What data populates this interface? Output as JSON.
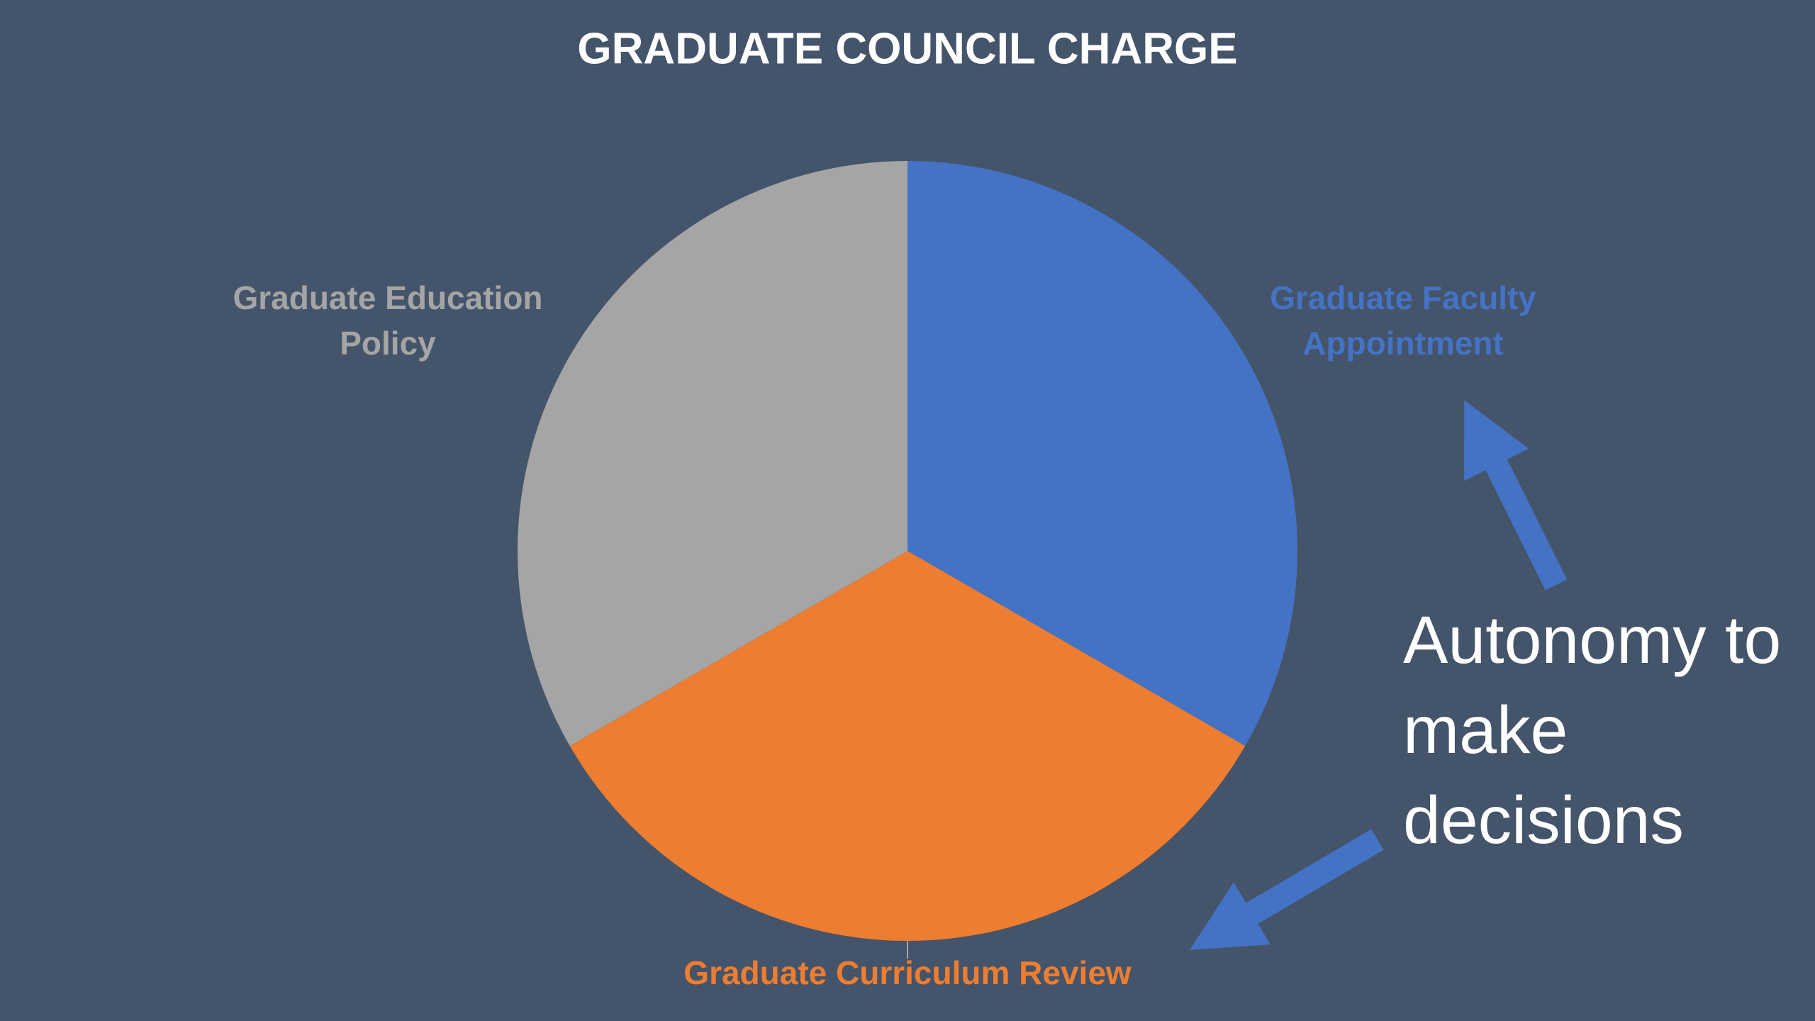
{
  "chart_data": {
    "type": "pie",
    "title": "GRADUATE COUNCIL CHARGE",
    "categories": [
      "Graduate Faculty Appointment",
      "Graduate Curriculum Review",
      "Graduate Education Policy"
    ],
    "values": [
      33.3,
      33.3,
      33.3
    ],
    "colors": [
      "#4472c4",
      "#ed7d31",
      "#a5a5a5"
    ],
    "annotation": "Autonomy to make decisions"
  }
}
